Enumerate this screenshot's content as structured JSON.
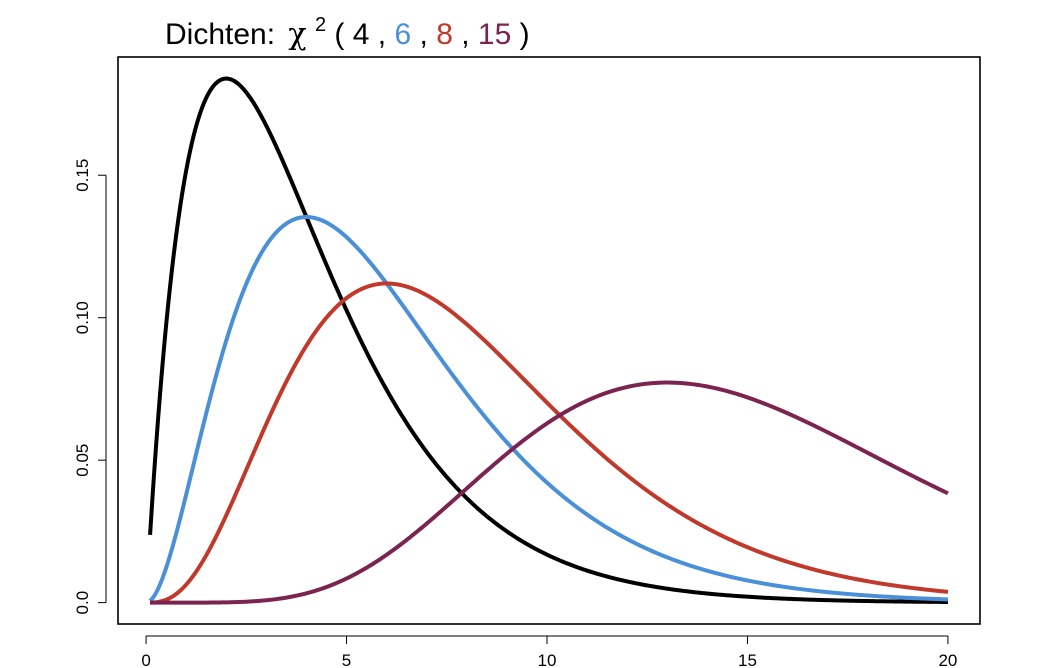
{
  "chart_data": {
    "type": "line",
    "title": {
      "prefix": "Dichten:",
      "symbol": "χ",
      "superscript": "2",
      "open": "(",
      "sep": ",",
      "close": ")",
      "parts": [
        {
          "text": "4",
          "color": "#000000"
        },
        {
          "text": "6",
          "color": "#4a90d9"
        },
        {
          "text": "8",
          "color": "#c0392b"
        },
        {
          "text": "15",
          "color": "#7b2451"
        }
      ]
    },
    "xlabel": "",
    "ylabel": "",
    "xlim": [
      -0.7,
      20.8
    ],
    "ylim": [
      -0.0075,
      0.1915
    ],
    "x_range": [
      0.1,
      20
    ],
    "x_ticks": [
      0,
      5,
      10,
      15,
      20
    ],
    "x_tick_labels": [
      "0",
      "5",
      "10",
      "15",
      "20"
    ],
    "y_ticks": [
      0.0,
      0.05,
      0.1,
      0.15
    ],
    "y_tick_labels": [
      "0.0",
      "0.05",
      "0.10",
      "0.15"
    ],
    "grid": false,
    "legend": "none",
    "series": [
      {
        "df": 4,
        "color": "#000000"
      },
      {
        "df": 6,
        "color": "#4a90d9"
      },
      {
        "df": 8,
        "color": "#c0392b"
      },
      {
        "df": 15,
        "color": "#7b2451"
      }
    ]
  }
}
